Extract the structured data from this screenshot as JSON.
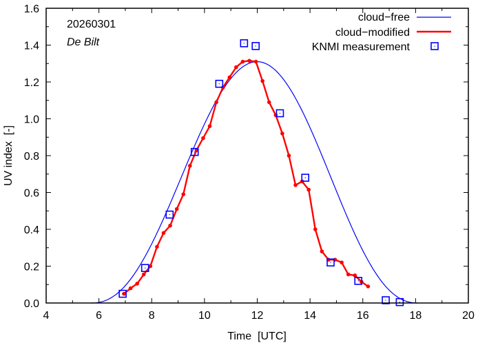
{
  "chart_data": {
    "type": "line",
    "title": "",
    "xlabel": "Time  [UTC]",
    "ylabel": "UV index  [-]",
    "xlim": [
      4,
      20
    ],
    "ylim": [
      0,
      1.6
    ],
    "xticks": [
      4,
      6,
      8,
      10,
      12,
      14,
      16,
      18,
      20
    ],
    "xtick_labels": [
      "4",
      "6",
      "8",
      "10",
      "12",
      "14",
      "16",
      "18",
      "20"
    ],
    "yticks": [
      0,
      0.2,
      0.4,
      0.6,
      0.8,
      1.0,
      1.2,
      1.4,
      1.6
    ],
    "ytick_labels": [
      "0.0",
      "0.2",
      "0.4",
      "0.6",
      "0.8",
      "1.0",
      "1.2",
      "1.4",
      "1.6"
    ],
    "grid": false,
    "legend_position": "top-right",
    "annotations": {
      "date": "20260301",
      "location": "De Bilt"
    },
    "series": [
      {
        "name": "cloud−free",
        "style": "line",
        "color": "#0000ff",
        "model": {
          "start": 5.7,
          "end": 18.1,
          "peak_time": 12.0,
          "peak_value": 1.31
        }
      },
      {
        "name": "cloud−modified",
        "style": "line-points",
        "color": "#ff0000",
        "x": [
          6.95,
          7.2,
          7.45,
          7.7,
          7.95,
          8.2,
          8.45,
          8.7,
          8.95,
          9.2,
          9.45,
          9.7,
          9.95,
          10.2,
          10.45,
          10.7,
          10.95,
          11.2,
          11.45,
          11.7,
          11.95,
          12.2,
          12.45,
          12.7,
          12.95,
          13.2,
          13.45,
          13.7,
          13.95,
          14.2,
          14.45,
          14.7,
          14.95,
          15.2,
          15.45,
          15.7,
          15.95,
          16.2
        ],
        "y": [
          0.05,
          0.08,
          0.105,
          0.155,
          0.2,
          0.305,
          0.38,
          0.42,
          0.51,
          0.59,
          0.745,
          0.83,
          0.895,
          0.96,
          1.09,
          1.17,
          1.225,
          1.28,
          1.31,
          1.315,
          1.31,
          1.205,
          1.09,
          1.02,
          0.92,
          0.8,
          0.64,
          0.66,
          0.615,
          0.4,
          0.28,
          0.235,
          0.235,
          0.22,
          0.155,
          0.15,
          0.115,
          0.09
        ]
      },
      {
        "name": "KNMI measurement",
        "style": "square-markers",
        "color": "#0000ff",
        "x": [
          6.9,
          7.75,
          8.68,
          9.63,
          10.56,
          11.5,
          11.94,
          12.86,
          13.82,
          14.78,
          15.83,
          16.87,
          17.4
        ],
        "y": [
          0.05,
          0.19,
          0.48,
          0.82,
          1.19,
          1.41,
          1.395,
          1.03,
          0.68,
          0.22,
          0.12,
          0.015,
          0.005
        ]
      }
    ]
  }
}
